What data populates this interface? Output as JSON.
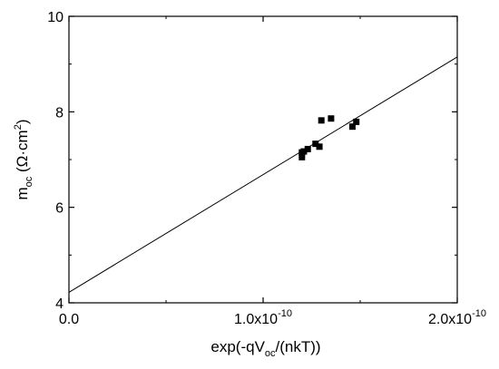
{
  "chart_data": {
    "type": "scatter",
    "title": "",
    "xlabel": {
      "base": "exp(-qV",
      "sub": "oc",
      "rest": "/(nkT))"
    },
    "ylabel": {
      "base": "m",
      "sub": "oc",
      "rest": " (Ω·cm",
      "sup": "2",
      "close": ")"
    },
    "xlim": [
      0,
      2e-10
    ],
    "ylim": [
      4,
      10
    ],
    "x_ticks": [
      {
        "value": 0,
        "mantissa": "0.0",
        "exp": ""
      },
      {
        "value": 1e-10,
        "mantissa": "1.0x10",
        "exp": "-10"
      },
      {
        "value": 2e-10,
        "mantissa": "2.0x10",
        "exp": "-10"
      }
    ],
    "y_ticks": [
      {
        "value": 4,
        "label": "4"
      },
      {
        "value": 6,
        "label": "6"
      },
      {
        "value": 8,
        "label": "8"
      },
      {
        "value": 10,
        "label": "10"
      }
    ],
    "series": [
      {
        "marker": "square",
        "color": "#000000",
        "x": [
          1.2e-10,
          1.2e-10,
          1.21e-10,
          1.23e-10,
          1.27e-10,
          1.29e-10,
          1.3e-10,
          1.35e-10,
          1.46e-10,
          1.48e-10
        ],
        "y": [
          7.05,
          7.15,
          7.17,
          7.22,
          7.33,
          7.27,
          7.82,
          7.86,
          7.69,
          7.79
        ]
      }
    ],
    "fit_line": {
      "color": "#000000",
      "x": [
        0,
        2e-10
      ],
      "y": [
        4.22,
        9.15
      ]
    },
    "grid": false
  }
}
